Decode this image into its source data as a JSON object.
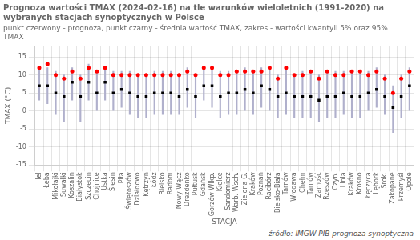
{
  "chart_data": {
    "type": "scatter",
    "title": "Prognoza wartości TMAX (2024-02-16) na tle warunków wieloletnich (1991-2020) na wybranych stacjach synoptycznych w Polsce",
    "subtitle": "punkt czerwony - prognoza, punkt czarny - średnia wartość TMAX, zakres - wartości kwantyli 5% oraz 95% TMAX",
    "source": "źródło: IMGW-PIB prognoza synoptyczna",
    "x_label": "STACJA",
    "y_label": "TMAX (°C)",
    "categories": [
      "Hel",
      "Łeba",
      "Mikołajki",
      "Suwałki",
      "Koszalin",
      "Białystok",
      "Szczecin",
      "Chojnice",
      "Ustka",
      "Ślesin",
      "Piła",
      "Świętoszów",
      "Działdowo",
      "Kętrzyn",
      "Łódź",
      "Bielsko",
      "Radom",
      "Nowy Wącz",
      "Drezdenko",
      "Pułtusk",
      "Gdańsk",
      "Gorzów Wlkp.",
      "Kielce",
      "Sandomierz",
      "Warb. Wsch.",
      "Zielona G.",
      "Kraków",
      "Poznań",
      "Racibórz",
      "Bielsko-Biała",
      "Tarnów",
      "Włodawa",
      "Chełm",
      "Tarnów",
      "Zamość",
      "Rzeszów",
      "Czyn.",
      "Linia",
      "Kraków",
      "Krosno",
      "Łęczyca",
      "Lębork",
      "Srok.",
      "Zakopane",
      "Przemyśl",
      "Opole"
    ],
    "error_bars": {
      "color": "#b0b0cc",
      "low": [
        3,
        2,
        -1,
        -3,
        3,
        -3,
        3,
        0,
        3,
        0,
        1,
        -1,
        -2,
        -2,
        -1,
        -1,
        -1,
        -1,
        1,
        -2,
        3,
        1,
        -2,
        -1,
        -1,
        0,
        -1,
        1,
        0,
        -2,
        -1,
        -2,
        -2,
        -2,
        -3,
        -2,
        -2,
        -1,
        -2,
        -2,
        0,
        1,
        -1,
        -6,
        -2,
        0
      ],
      "high": [
        12,
        12,
        11,
        10,
        12,
        10,
        13,
        11,
        12,
        11,
        11,
        11,
        10,
        10,
        11,
        11,
        11,
        10,
        12,
        10,
        12,
        12,
        11,
        11,
        11,
        12,
        11,
        12,
        12,
        10,
        12,
        10,
        11,
        11,
        10,
        11,
        11,
        11,
        11,
        11,
        11,
        12,
        10,
        7,
        10,
        12
      ]
    },
    "series": [
      {
        "color": "black",
        "marker": "square",
        "values": [
          7,
          7,
          5,
          4,
          8,
          4,
          8,
          5,
          8,
          5,
          6,
          5,
          4,
          4,
          5,
          5,
          5,
          4,
          6,
          4,
          7,
          7,
          4,
          5,
          5,
          6,
          5,
          7,
          6,
          4,
          5,
          4,
          4,
          4,
          3,
          4,
          4,
          5,
          4,
          4,
          5,
          6,
          4,
          1,
          4,
          7
        ]
      },
      {
        "color": "red",
        "marker": "circle",
        "values": [
          12,
          13,
          10,
          9,
          11,
          9,
          12,
          11,
          12,
          10,
          10,
          10,
          10,
          10,
          10,
          10,
          10,
          10,
          11,
          10,
          12,
          12,
          10,
          10,
          11,
          11,
          11,
          11,
          12,
          9,
          12,
          10,
          10,
          11,
          9,
          11,
          10,
          10,
          11,
          11,
          10,
          11,
          9,
          5,
          9,
          11
        ]
      }
    ],
    "ylim": [
      -15,
      18
    ],
    "yticks": [
      -15,
      -10,
      -5,
      0,
      5,
      10,
      15
    ],
    "grid": true
  }
}
